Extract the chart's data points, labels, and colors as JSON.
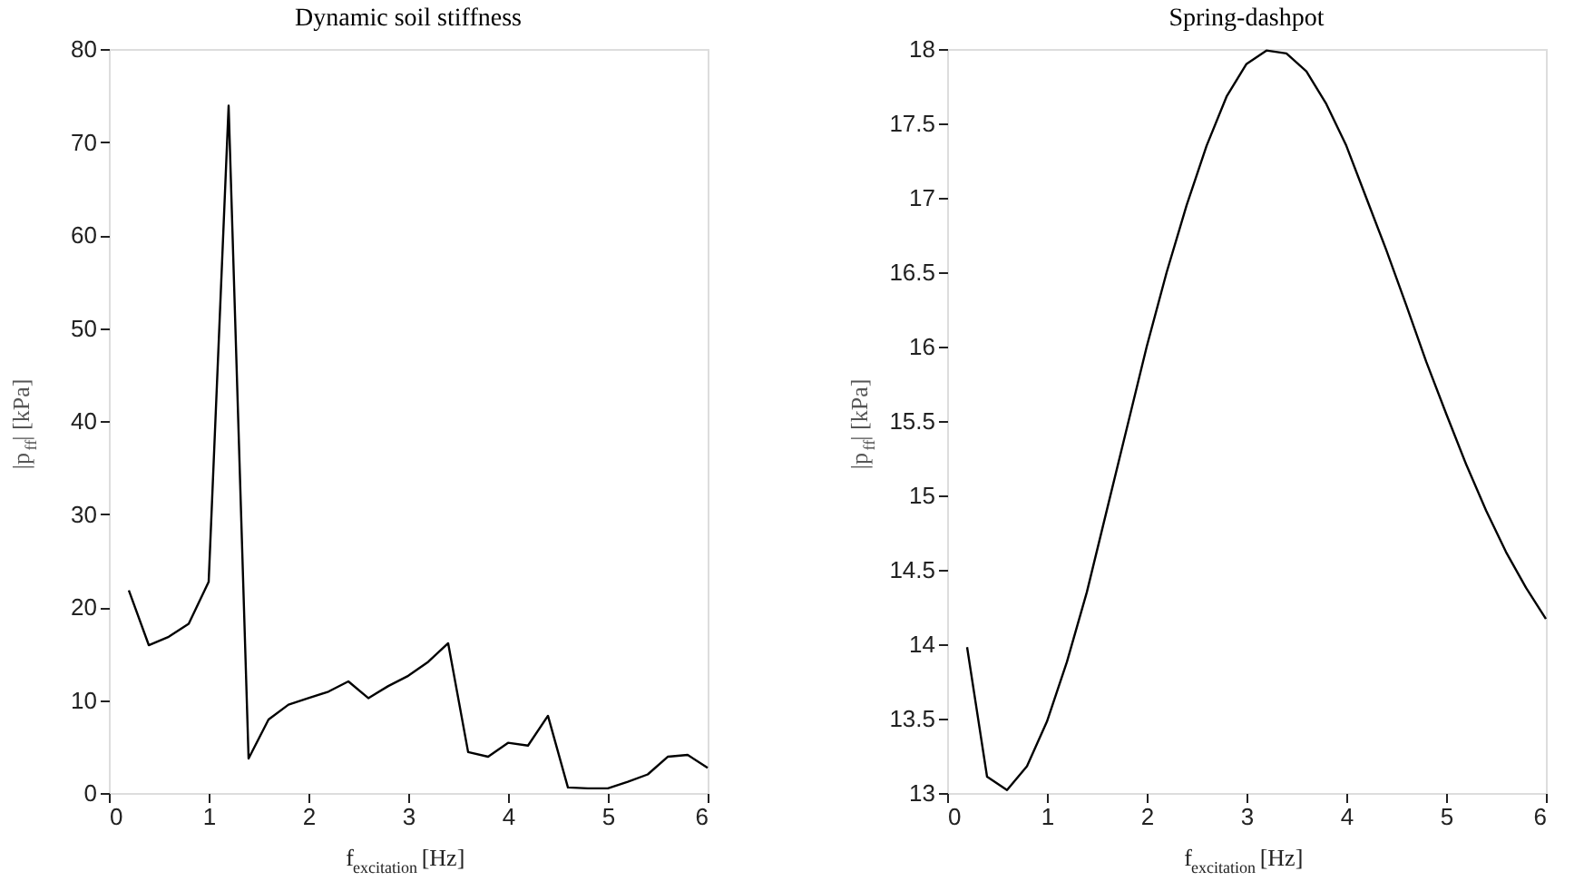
{
  "chart_data": [
    {
      "type": "line",
      "title": "Dynamic soil stiffness",
      "xlabel": "f$_{excitation}$ [Hz]",
      "ylabel": "|p$_{ff}$| [kPa]",
      "x": [
        0.2,
        0.4,
        0.6,
        0.8,
        1.0,
        1.2,
        1.4,
        1.6,
        1.8,
        2.0,
        2.2,
        2.4,
        2.6,
        2.8,
        3.0,
        3.2,
        3.4,
        3.6,
        3.8,
        4.0,
        4.2,
        4.4,
        4.6,
        4.8,
        5.0,
        5.2,
        5.4,
        5.6,
        5.8,
        6.0
      ],
      "series": [
        {
          "color": "#000000",
          "values": [
            21.8,
            15.9,
            16.8,
            18.2,
            22.7,
            73.9,
            3.7,
            7.9,
            9.5,
            10.2,
            10.9,
            12.0,
            10.2,
            11.5,
            12.6,
            14.1,
            16.1,
            4.4,
            3.9,
            5.4,
            5.1,
            8.3,
            0.6,
            0.5,
            0.5,
            1.2,
            2.0,
            3.9,
            4.1,
            2.7
          ]
        }
      ],
      "xlim": [
        0,
        6
      ],
      "xticks": [
        0,
        1,
        2,
        3,
        4,
        5,
        6
      ],
      "ylim": [
        0,
        80
      ],
      "yticks": [
        0,
        10,
        20,
        30,
        40,
        50,
        60,
        70,
        80
      ],
      "grid": false,
      "legend": false,
      "marker": "none",
      "line_style": "solid"
    },
    {
      "type": "line",
      "title": "Spring-dashpot",
      "xlabel": "f$_{excitation}$ [Hz]",
      "ylabel": "|p$_{ff}$| [kPa]",
      "x": [
        0.2,
        0.4,
        0.6,
        0.8,
        1.0,
        1.2,
        1.4,
        1.6,
        1.8,
        2.0,
        2.2,
        2.4,
        2.6,
        2.8,
        3.0,
        3.2,
        3.4,
        3.6,
        3.8,
        4.0,
        4.2,
        4.4,
        4.6,
        4.8,
        5.0,
        5.2,
        5.4,
        5.6,
        5.8,
        6.0
      ],
      "series": [
        {
          "color": "#000000",
          "values": [
            13.98,
            13.11,
            13.02,
            13.18,
            13.48,
            13.88,
            14.35,
            14.9,
            15.45,
            16.0,
            16.5,
            16.95,
            17.35,
            17.68,
            17.9,
            17.99,
            17.97,
            17.85,
            17.63,
            17.35,
            17.0,
            16.65,
            16.28,
            15.9,
            15.55,
            15.21,
            14.9,
            14.62,
            14.38,
            14.17
          ]
        }
      ],
      "xlim": [
        0,
        6
      ],
      "xticks": [
        0,
        1,
        2,
        3,
        4,
        5,
        6
      ],
      "ylim": [
        13,
        18
      ],
      "yticks": [
        13,
        13.5,
        14,
        14.5,
        15,
        15.5,
        16,
        16.5,
        17,
        17.5,
        18
      ],
      "grid": false,
      "legend": false,
      "marker": "none",
      "line_style": "solid"
    }
  ]
}
